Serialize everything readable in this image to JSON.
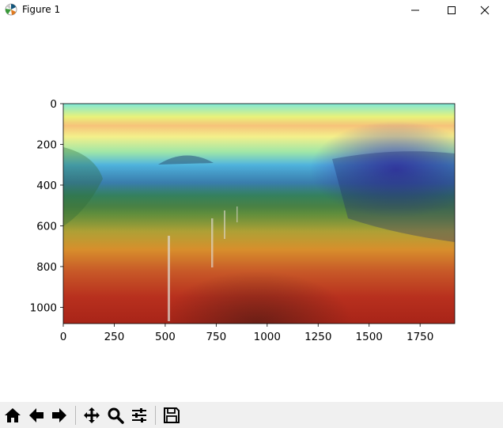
{
  "window": {
    "title": "Figure 1",
    "controls": {
      "minimize": "minimize",
      "maximize": "maximize",
      "close": "close"
    }
  },
  "plot": {
    "image_description_icon": "heatmap-overlay-image",
    "x_ticks": [
      "0",
      "250",
      "500",
      "750",
      "1000",
      "1250",
      "1500",
      "1750"
    ],
    "y_ticks": [
      "0",
      "200",
      "400",
      "600",
      "800",
      "1000"
    ],
    "xlim": [
      0,
      1920
    ],
    "ylim": [
      0,
      1080
    ],
    "x_tick_values": [
      0,
      250,
      500,
      750,
      1000,
      1250,
      1500,
      1750
    ],
    "y_tick_values": [
      0,
      200,
      400,
      600,
      800,
      1000
    ]
  },
  "toolbar": {
    "buttons": [
      {
        "name": "home",
        "icon": "home-icon"
      },
      {
        "name": "back",
        "icon": "back-arrow-icon"
      },
      {
        "name": "forward",
        "icon": "forward-arrow-icon"
      },
      {
        "name": "pan",
        "icon": "move-icon"
      },
      {
        "name": "zoom",
        "icon": "zoom-icon"
      },
      {
        "name": "configure",
        "icon": "sliders-icon"
      },
      {
        "name": "save",
        "icon": "save-icon"
      }
    ]
  }
}
